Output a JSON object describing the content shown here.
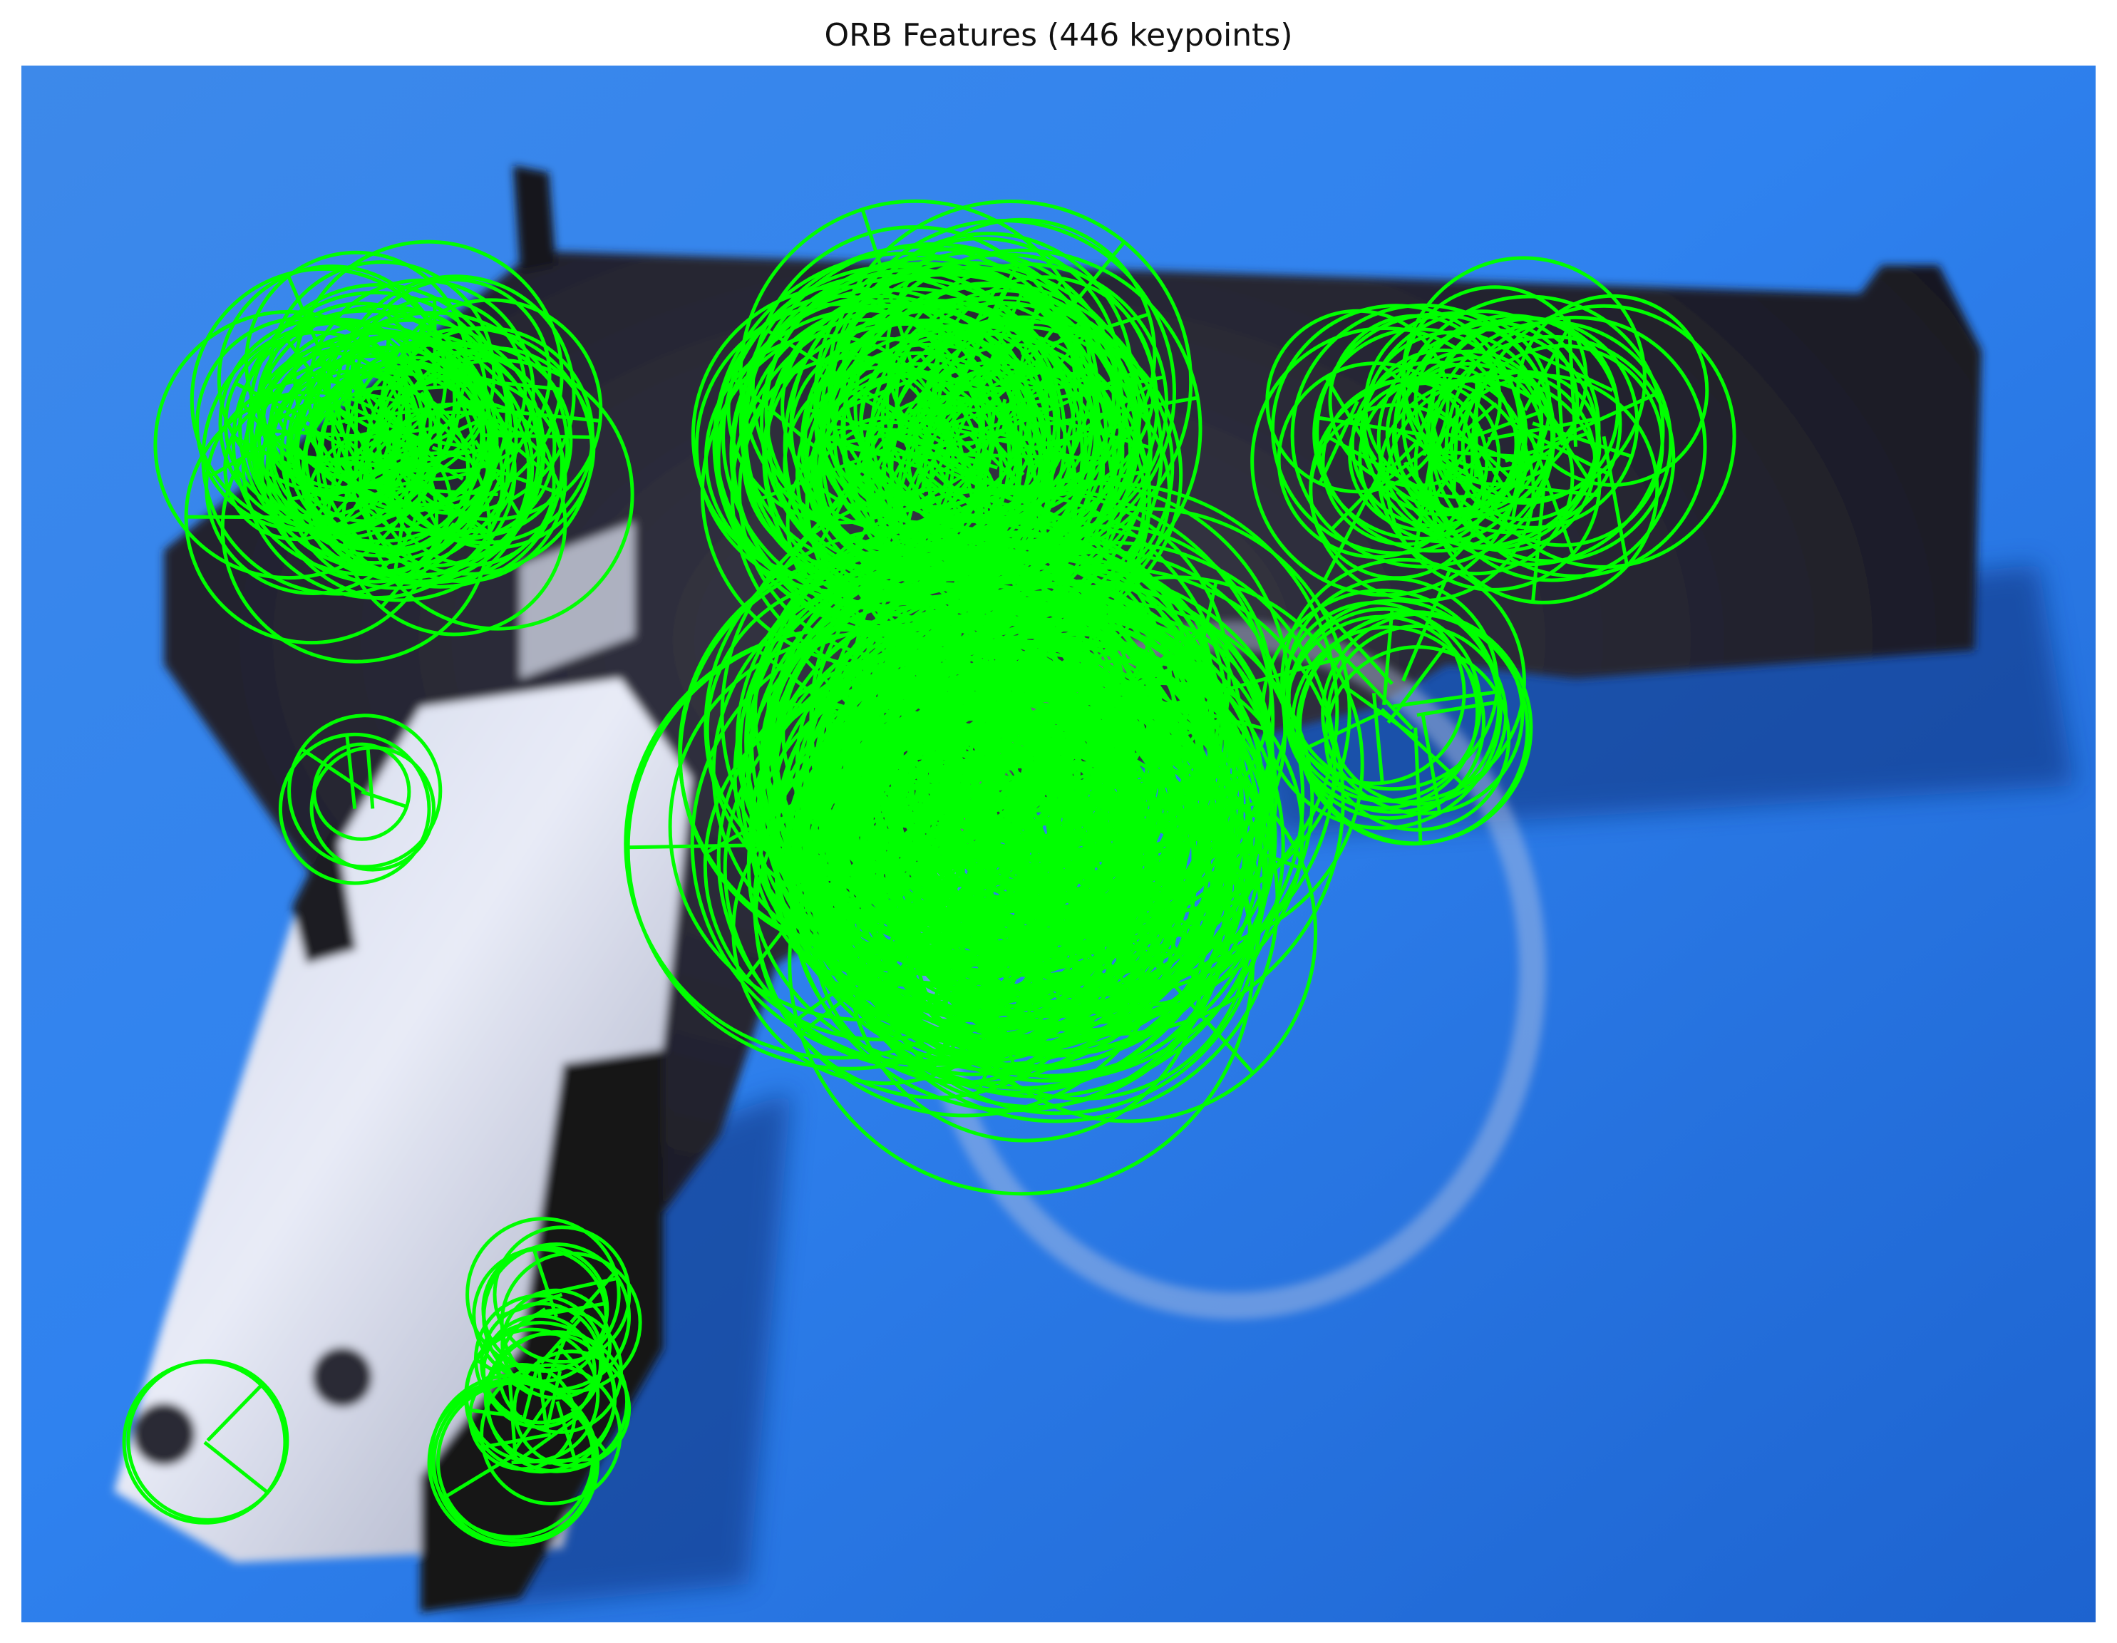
{
  "figure": {
    "title": "ORB Features (446 keypoints)"
  },
  "image": {
    "subject": "handgun",
    "background_color": "#2e7fe6",
    "keypoint_color": "#00ff00"
  },
  "overlay": {
    "keypoint_count": 446,
    "marker": "circle-with-orientation-line"
  }
}
